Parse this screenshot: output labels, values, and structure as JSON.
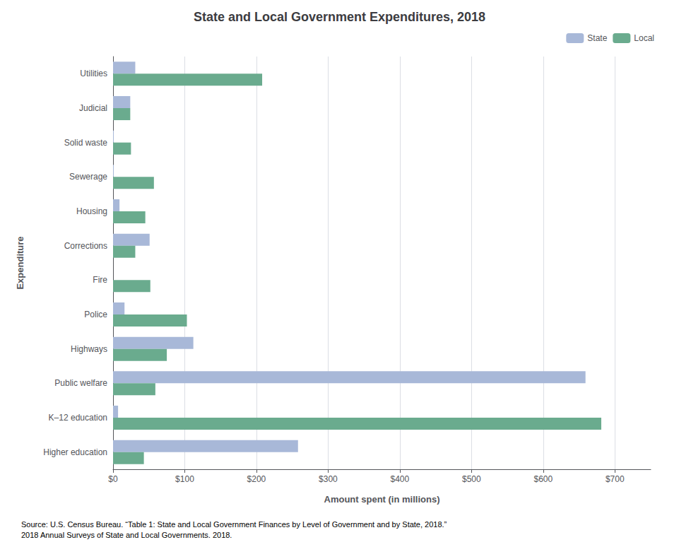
{
  "chart_data": {
    "type": "bar",
    "orientation": "horizontal",
    "title": "State and Local Government Expenditures, 2018",
    "xlabel": "Amount spent (in millions)",
    "ylabel": "Expenditure",
    "categories": [
      "Utilities",
      "Judicial",
      "Solid waste",
      "Sewerage",
      "Housing",
      "Corrections",
      "Fire",
      "Police",
      "Highways",
      "Public welfare",
      "K–12 education",
      "Higher education"
    ],
    "series": [
      {
        "name": "State",
        "color": "#a8b8d8",
        "values": [
          31,
          24,
          1,
          1,
          9,
          51,
          0,
          16,
          112,
          659,
          7,
          258
        ]
      },
      {
        "name": "Local",
        "color": "#6aab8e",
        "values": [
          208,
          24,
          25,
          57,
          45,
          31,
          52,
          103,
          75,
          59,
          681,
          43
        ]
      }
    ],
    "xlim": [
      0,
      750
    ],
    "xticks": [
      {
        "value": 0,
        "label": "$0"
      },
      {
        "value": 100,
        "label": "$100"
      },
      {
        "value": 200,
        "label": "$200"
      },
      {
        "value": 300,
        "label": "$300"
      },
      {
        "value": 400,
        "label": "$400"
      },
      {
        "value": 500,
        "label": "$500"
      },
      {
        "value": 600,
        "label": "$600"
      },
      {
        "value": 700,
        "label": "$700"
      }
    ],
    "grid": true,
    "legend": "upper right",
    "annotations": [
      "Source: U.S. Census Bureau. “Table 1: State and Local Government Finances by Level of Government and by State, 2018.”\n2018 Annual Surveys of State and Local Governments. 2018."
    ]
  }
}
